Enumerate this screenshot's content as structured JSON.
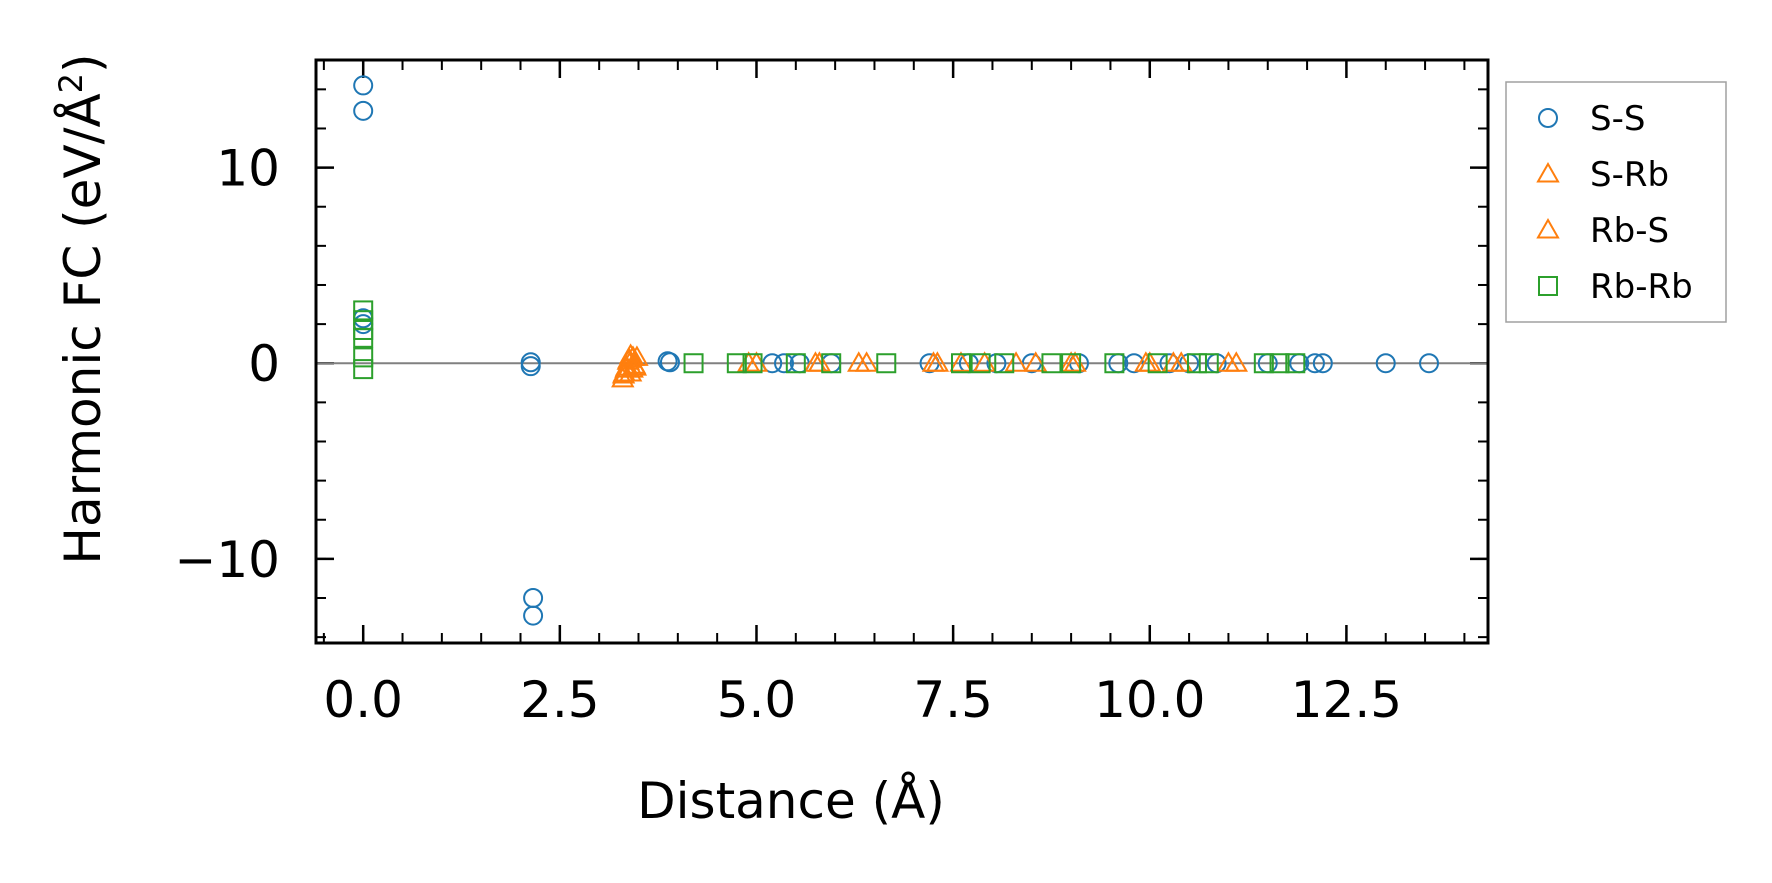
{
  "chart_data": {
    "type": "scatter",
    "title": "",
    "xlabel": "Distance (Å)",
    "ylabel_main": "Harmonic FC (eV/Å",
    "ylabel_sup": "2",
    "ylabel_close": ")",
    "xlim": [
      -0.6,
      14.3
    ],
    "ylim": [
      -14.3,
      15.5
    ],
    "xticks": [
      0,
      2.5,
      5,
      7.5,
      10,
      12.5
    ],
    "xtick_labels": [
      "0.0",
      "2.5",
      "5.0",
      "7.5",
      "10.0",
      "12.5"
    ],
    "xminor_step": 0.5,
    "yticks": [
      -10,
      0,
      10
    ],
    "ytick_labels": [
      "−10",
      "0",
      "10"
    ],
    "yminor_step": 2,
    "reference_line_y": 0,
    "legend_position": "outside-right-top",
    "series": [
      {
        "name": "S-S",
        "marker": "circle",
        "color": "#1f77b4",
        "points": [
          [
            0,
            14.2
          ],
          [
            0,
            12.9
          ],
          [
            0,
            2.3
          ],
          [
            0,
            2.0
          ],
          [
            2.13,
            0.05
          ],
          [
            2.13,
            -0.15
          ],
          [
            2.16,
            -12.0
          ],
          [
            2.16,
            -12.9
          ],
          [
            3.87,
            0.1
          ],
          [
            3.9,
            0.05
          ],
          [
            5.2,
            0
          ],
          [
            5.35,
            0
          ],
          [
            5.55,
            0
          ],
          [
            5.95,
            0
          ],
          [
            7.2,
            0
          ],
          [
            7.7,
            0
          ],
          [
            8.05,
            0
          ],
          [
            8.5,
            0
          ],
          [
            9.1,
            0
          ],
          [
            9.6,
            0
          ],
          [
            9.8,
            0
          ],
          [
            10.25,
            0
          ],
          [
            10.5,
            0
          ],
          [
            10.85,
            0
          ],
          [
            11.5,
            0
          ],
          [
            11.9,
            0
          ],
          [
            12.1,
            0
          ],
          [
            12.2,
            0
          ],
          [
            13.0,
            0
          ],
          [
            13.55,
            0
          ]
        ]
      },
      {
        "name": "S-Rb",
        "marker": "triangle",
        "color": "#ff7f0e",
        "points": [
          [
            3.3,
            -0.8
          ],
          [
            3.32,
            -0.5
          ],
          [
            3.35,
            -0.2
          ],
          [
            3.38,
            0.2
          ],
          [
            3.4,
            0.4
          ],
          [
            3.42,
            -0.3
          ],
          [
            3.45,
            -0.1
          ],
          [
            3.48,
            0.3
          ],
          [
            4.9,
            0
          ],
          [
            5.8,
            0
          ],
          [
            6.3,
            0
          ],
          [
            7.3,
            0
          ],
          [
            7.9,
            0
          ],
          [
            8.3,
            0
          ],
          [
            9.0,
            0
          ],
          [
            9.95,
            0
          ],
          [
            10.4,
            0
          ],
          [
            11.1,
            0
          ]
        ]
      },
      {
        "name": "Rb-S",
        "marker": "triangle",
        "color": "#ff7f0e",
        "points": [
          [
            3.31,
            -0.6
          ],
          [
            3.34,
            -0.3
          ],
          [
            3.37,
            0.1
          ],
          [
            3.4,
            -0.5
          ],
          [
            3.43,
            0.3
          ],
          [
            3.46,
            -0.2
          ],
          [
            5.0,
            0
          ],
          [
            5.75,
            0
          ],
          [
            6.4,
            0
          ],
          [
            7.25,
            0
          ],
          [
            7.6,
            0
          ],
          [
            8.55,
            0
          ],
          [
            9.05,
            0
          ],
          [
            10.0,
            0
          ],
          [
            10.3,
            0
          ],
          [
            11.0,
            0
          ]
        ]
      },
      {
        "name": "Rb-Rb",
        "marker": "square",
        "color": "#2ca02c",
        "points": [
          [
            0,
            2.7
          ],
          [
            0,
            2.2
          ],
          [
            0,
            1.7
          ],
          [
            0,
            1.3
          ],
          [
            0,
            0.3
          ],
          [
            0,
            -0.3
          ],
          [
            4.2,
            0
          ],
          [
            4.75,
            0
          ],
          [
            4.95,
            0
          ],
          [
            5.5,
            0
          ],
          [
            5.95,
            0
          ],
          [
            6.65,
            0
          ],
          [
            7.6,
            0
          ],
          [
            7.85,
            0
          ],
          [
            8.15,
            0
          ],
          [
            8.75,
            0
          ],
          [
            9.0,
            0
          ],
          [
            9.55,
            0
          ],
          [
            10.1,
            0
          ],
          [
            10.6,
            0
          ],
          [
            10.75,
            0
          ],
          [
            11.45,
            0
          ],
          [
            11.65,
            0
          ],
          [
            11.85,
            0
          ]
        ]
      }
    ]
  }
}
